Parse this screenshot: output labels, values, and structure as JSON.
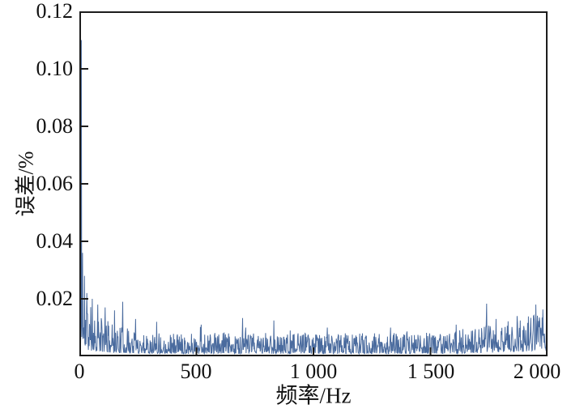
{
  "figure": {
    "background": "#ffffff",
    "text_color": "#111111"
  },
  "chart_data": {
    "type": "line",
    "title": "",
    "xlabel": "频率/Hz",
    "ylabel": "误差/%",
    "xlim": [
      0,
      2000
    ],
    "ylim": [
      0,
      0.12
    ],
    "x_ticks": [
      0,
      500,
      1000,
      1500,
      2000
    ],
    "x_tick_labels": [
      "0",
      "500",
      "1 000",
      "1 500",
      "2 000"
    ],
    "y_ticks": [
      0.02,
      0.04,
      0.06,
      0.08,
      0.1,
      0.12
    ],
    "y_tick_labels_top_down": [
      "0.12",
      "0.10",
      "0.08",
      "0.06",
      "0.04",
      "0.02"
    ],
    "grid": false,
    "legend": null,
    "box": true,
    "tick_direction": "in",
    "line_color": "#4a6b9e",
    "axis_color": "#1c1c1c",
    "num_points": 1200,
    "noise_envelope": {
      "baseline": 0.0045,
      "start_amp": 0.009,
      "start_decay_hz": 90,
      "end_amp": 0.005,
      "end_start_hz": 1400,
      "end_span_hz": 600,
      "seed": 11,
      "min_factor": 0.2,
      "rand_factor": 1.6,
      "rand_power": 1.8,
      "burst_prob": 0.015,
      "burst_gain": 1.7
    },
    "peaks": [
      {
        "x": 8,
        "y": 0.11
      },
      {
        "x": 14,
        "y": 0.036
      },
      {
        "x": 22,
        "y": 0.028
      },
      {
        "x": 32,
        "y": 0.022
      },
      {
        "x": 55,
        "y": 0.02
      },
      {
        "x": 78,
        "y": 0.018
      },
      {
        "x": 110,
        "y": 0.017
      },
      {
        "x": 150,
        "y": 0.016
      },
      {
        "x": 185,
        "y": 0.019
      },
      {
        "x": 240,
        "y": 0.013
      },
      {
        "x": 330,
        "y": 0.012
      },
      {
        "x": 520,
        "y": 0.011
      },
      {
        "x": 710,
        "y": 0.01
      },
      {
        "x": 900,
        "y": 0.009
      },
      {
        "x": 1060,
        "y": 0.01
      },
      {
        "x": 1330,
        "y": 0.01
      },
      {
        "x": 1610,
        "y": 0.011
      },
      {
        "x": 1780,
        "y": 0.013
      },
      {
        "x": 1870,
        "y": 0.014
      },
      {
        "x": 1950,
        "y": 0.018
      },
      {
        "x": 1995,
        "y": 0.015
      }
    ]
  }
}
